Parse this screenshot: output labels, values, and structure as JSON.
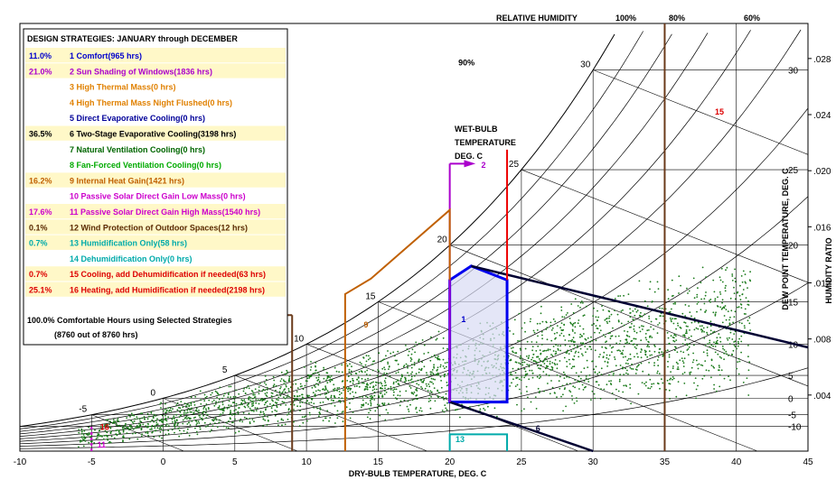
{
  "chart_data": {
    "type": "scatter",
    "title": "DESIGN STRATEGIES:  JANUARY through DECEMBER",
    "xlabel": "DRY-BULB TEMPERATURE, DEG. C",
    "ylabel": "DEW POINT TEMPERATURE, DEG. C",
    "ylabel_right": "HUMIDITY RATIO",
    "rh_label": "RELATIVE HUMIDITY",
    "wb_label": [
      "WET-BULB",
      "TEMPERATURE",
      "DEG. C"
    ],
    "xlim": [
      -10,
      45
    ],
    "x_ticks": [
      -10,
      -5,
      0,
      5,
      10,
      15,
      20,
      25,
      30,
      35,
      40,
      45
    ],
    "dewpoint_ticks": [
      -10,
      -5,
      0,
      5,
      10,
      15,
      20,
      25,
      30
    ],
    "humidity_ratio_ticks": [
      ".004",
      ".008",
      ".012",
      ".016",
      ".020",
      ".024",
      ".028"
    ],
    "humidity_ratio_values": [
      0.004,
      0.008,
      0.012,
      0.016,
      0.02,
      0.024,
      0.028
    ],
    "rh_curves": [
      "100%",
      "80%",
      "60%"
    ],
    "rh_inline_label": "90%",
    "wetbulb_labels": [
      -5,
      0,
      5,
      10,
      15,
      20,
      25,
      30
    ],
    "strategies": [
      {
        "pct": "11.0%",
        "text": "1 Comfort(965 hrs)",
        "color": "#0000cc",
        "bg": "#fff8c8"
      },
      {
        "pct": "21.0%",
        "text": "2 Sun Shading of Windows(1836 hrs)",
        "color": "#aa00cc",
        "bg": "#fff8c8"
      },
      {
        "pct": "",
        "text": "3 High Thermal Mass(0 hrs)",
        "color": "#e08000",
        "bg": "#ffffff"
      },
      {
        "pct": "",
        "text": "4 High Thermal Mass Night Flushed(0 hrs)",
        "color": "#e08000",
        "bg": "#ffffff"
      },
      {
        "pct": "",
        "text": "5 Direct Evaporative Cooling(0 hrs)",
        "color": "#000099",
        "bg": "#ffffff"
      },
      {
        "pct": "36.5%",
        "text": "6 Two-Stage Evaporative Cooling(3198 hrs)",
        "color": "#000000",
        "bg": "#fff8c8"
      },
      {
        "pct": "",
        "text": "7 Natural Ventilation Cooling(0 hrs)",
        "color": "#006600",
        "bg": "#ffffff"
      },
      {
        "pct": "",
        "text": "8 Fan-Forced Ventilation Cooling(0 hrs)",
        "color": "#00aa00",
        "bg": "#ffffff"
      },
      {
        "pct": "16.2%",
        "text": "9 Internal Heat Gain(1421 hrs)",
        "color": "#c06000",
        "bg": "#fff8c8"
      },
      {
        "pct": "",
        "text": "10 Passive Solar Direct Gain Low Mass(0 hrs)",
        "color": "#cc00cc",
        "bg": "#ffffff"
      },
      {
        "pct": "17.6%",
        "text": "11 Passive Solar Direct Gain High Mass(1540 hrs)",
        "color": "#cc00cc",
        "bg": "#fff8c8"
      },
      {
        "pct": "0.1%",
        "text": "12 Wind Protection of Outdoor Spaces(12 hrs)",
        "color": "#5a2a00",
        "bg": "#fff8c8"
      },
      {
        "pct": "0.7%",
        "text": "13 Humidification Only(58 hrs)",
        "color": "#00aaaa",
        "bg": "#fff8c8"
      },
      {
        "pct": "",
        "text": "14 Dehumidification Only(0 hrs)",
        "color": "#00aaaa",
        "bg": "#ffffff"
      },
      {
        "pct": "0.7%",
        "text": "15 Cooling, add Dehumidification if needed(63 hrs)",
        "color": "#dd0000",
        "bg": "#fff8c8"
      },
      {
        "pct": "25.1%",
        "text": "16 Heating, add Humidification if needed(2198 hrs)",
        "color": "#dd0000",
        "bg": "#fff8c8"
      }
    ],
    "summary_line1": "100.0%  Comfortable Hours using Selected Strategies",
    "summary_line2": "(8760 out of 8760 hrs)",
    "zone_labels": [
      {
        "label": "1",
        "color": "#0000cc"
      },
      {
        "label": "2",
        "color": "#aa00cc"
      },
      {
        "label": "6",
        "color": "#000033"
      },
      {
        "label": "9",
        "color": "#c06000"
      },
      {
        "label": "11",
        "color": "#cc00cc"
      },
      {
        "label": "12",
        "color": "#5a2a00"
      },
      {
        "label": "13",
        "color": "#00aaaa"
      },
      {
        "label": "15",
        "color": "#dd0000"
      },
      {
        "label": "16",
        "color": "#dd0000"
      }
    ],
    "series": [
      {
        "name": "Hourly climate data",
        "color": "#1a7a1a",
        "points": 8760,
        "trend": [
          [
            -5,
            0.0012
          ],
          [
            0,
            0.0022
          ],
          [
            10,
            0.004
          ],
          [
            20,
            0.0055
          ],
          [
            30,
            0.0072
          ],
          [
            40,
            0.0088
          ]
        ]
      }
    ]
  }
}
